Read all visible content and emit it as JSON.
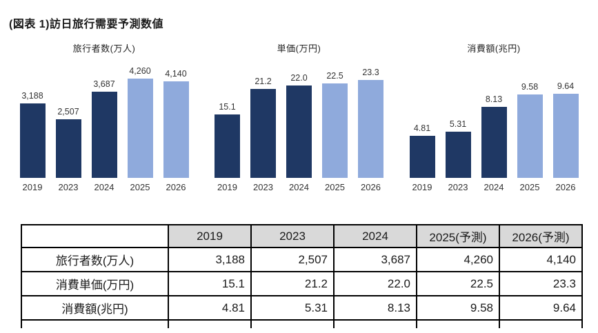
{
  "page": {
    "title": "(図表 1)訪日旅行需要予測数値"
  },
  "colors": {
    "bar_actual": "#1f3864",
    "bar_forecast": "#8faadc",
    "table_header_bg": "#d9d9d9",
    "border": "#000000",
    "text": "#333333"
  },
  "chart_data": [
    {
      "type": "bar",
      "title": "旅行者数(万人)",
      "categories": [
        "2019",
        "2023",
        "2024",
        "2025",
        "2026"
      ],
      "values": [
        3188,
        2507,
        3687,
        4260,
        4140
      ],
      "labels": [
        "3,188",
        "2,507",
        "3,687",
        "4,260",
        "4,140"
      ],
      "forecast_from_index": 3,
      "xlabel": "",
      "ylabel": "",
      "ylim": [
        0,
        4500
      ],
      "grid": false,
      "legend": "none"
    },
    {
      "type": "bar",
      "title": "単価(万円)",
      "categories": [
        "2019",
        "2023",
        "2024",
        "2025",
        "2026"
      ],
      "values": [
        15.1,
        21.2,
        22.0,
        22.5,
        23.3
      ],
      "labels": [
        "15.1",
        "21.2",
        "22.0",
        "22.5",
        "23.3"
      ],
      "forecast_from_index": 3,
      "xlabel": "",
      "ylabel": "",
      "ylim": [
        0,
        25
      ],
      "grid": false,
      "legend": "none"
    },
    {
      "type": "bar",
      "title": "消費額(兆円)",
      "categories": [
        "2019",
        "2023",
        "2024",
        "2025",
        "2026"
      ],
      "values": [
        4.81,
        5.31,
        8.13,
        9.58,
        9.64
      ],
      "labels": [
        "4.81",
        "5.31",
        "8.13",
        "9.58",
        "9.64"
      ],
      "forecast_from_index": 3,
      "xlabel": "",
      "ylabel": "",
      "ylim": [
        0,
        12
      ],
      "grid": false,
      "legend": "none"
    }
  ],
  "table": {
    "columns": [
      "",
      "2019",
      "2023",
      "2024",
      "2025(予測)",
      "2026(予測)"
    ],
    "rows": [
      {
        "label": "旅行者数(万人)",
        "values": [
          "3,188",
          "2,507",
          "3,687",
          "4,260",
          "4,140"
        ]
      },
      {
        "label": "消費単価(万円)",
        "values": [
          "15.1",
          "21.2",
          "22.0",
          "22.5",
          "23.3"
        ]
      },
      {
        "label": "消費額(兆円)",
        "values": [
          "4.81",
          "5.31",
          "8.13",
          "9.58",
          "9.64"
        ]
      }
    ]
  }
}
